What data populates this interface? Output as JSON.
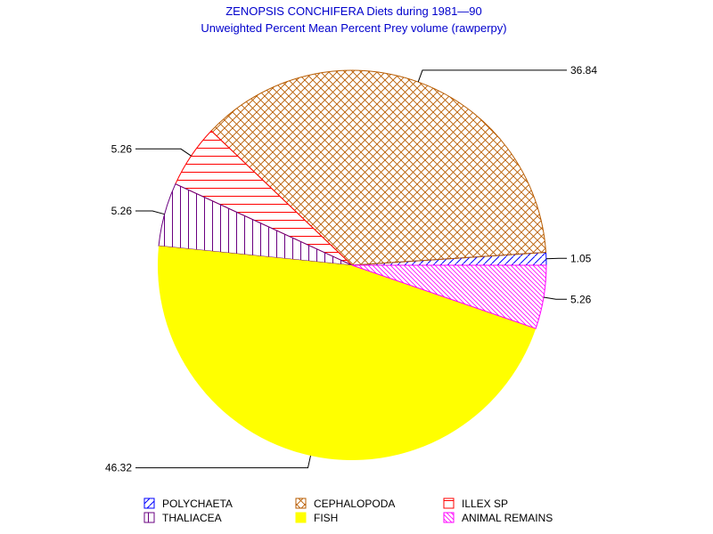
{
  "chart_data": {
    "type": "pie",
    "title": "ZENOPSIS CONCHIFERA Diets during 1981—90",
    "subtitle": "Unweighted Percent Mean Percent Prey  volume (rawperpy)",
    "slices": [
      {
        "name": "POLYCHAETA",
        "value": 1.05,
        "label": "1.05",
        "color": "#0000ff",
        "pattern": "diag-rising"
      },
      {
        "name": "CEPHALOPODA",
        "value": 36.84,
        "label": "36.84",
        "color": "#b85c00",
        "pattern": "crosshatch"
      },
      {
        "name": "ILLEX SP",
        "value": 5.26,
        "label": "5.26",
        "color": "#ff0000",
        "pattern": "horizontal"
      },
      {
        "name": "THALIACEA",
        "value": 5.26,
        "label": "5.26",
        "color": "#6a0080",
        "pattern": "vertical"
      },
      {
        "name": "FISH",
        "value": 46.32,
        "label": "46.32",
        "color": "#ffff00",
        "pattern": "solid"
      },
      {
        "name": "ANIMAL REMAINS",
        "value": 5.26,
        "label": "5.26",
        "color": "#ff00ff",
        "pattern": "diag-falling"
      }
    ]
  }
}
